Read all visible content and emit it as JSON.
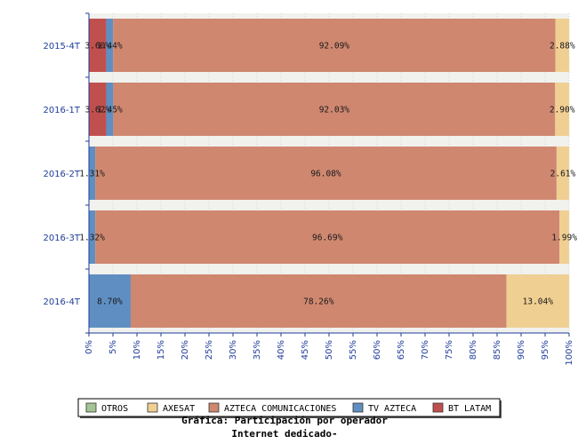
{
  "chart_data": {
    "type": "bar",
    "orientation": "horizontal",
    "stacked": true,
    "title": "Gráfica: Participación por operador",
    "subtitle": "Internet dedicado-",
    "categories": [
      "2015-4T",
      "2016-1T",
      "2016-2T",
      "2016-3T",
      "2016-4T"
    ],
    "xlim": [
      0,
      100
    ],
    "x_ticks": [
      "0%",
      "5%",
      "10%",
      "15%",
      "20%",
      "25%",
      "30%",
      "35%",
      "40%",
      "45%",
      "50%",
      "55%",
      "60%",
      "65%",
      "70%",
      "75%",
      "80%",
      "85%",
      "90%",
      "95%",
      "100%"
    ],
    "legend_position": "bottom",
    "grid": true,
    "series": [
      {
        "name": "BT LATAM",
        "color": "#c0504d",
        "values": [
          3.6,
          3.62,
          0,
          0,
          0
        ],
        "labels": [
          "3.60%",
          "3.62%",
          "",
          "",
          ""
        ]
      },
      {
        "name": "TV AZTECA",
        "color": "#5f8fc2",
        "values": [
          1.44,
          1.45,
          1.31,
          1.32,
          8.7
        ],
        "labels": [
          "1.44%",
          "1.45%",
          "1.31%",
          "1.32%",
          "8.70%"
        ]
      },
      {
        "name": "AZTECA COMUNICACIONES",
        "color": "#cf8770",
        "values": [
          92.09,
          92.03,
          96.08,
          96.69,
          78.26
        ],
        "labels": [
          "92.09%",
          "92.03%",
          "96.08%",
          "96.69%",
          "78.26%"
        ]
      },
      {
        "name": "AXESAT",
        "color": "#f0cf92",
        "values": [
          2.88,
          2.9,
          2.61,
          1.99,
          13.04
        ],
        "labels": [
          "2.88%",
          "2.90%",
          "2.61%",
          "1.99%",
          "13.04%"
        ]
      },
      {
        "name": "OTROS",
        "color": "#a5c495",
        "values": [
          0,
          0,
          0,
          0,
          0
        ],
        "labels": [
          "",
          "",
          "",
          "",
          ""
        ]
      }
    ],
    "legend_order": [
      "OTROS",
      "AXESAT",
      "AZTECA COMUNICACIONES",
      "TV AZTECA",
      "BT LATAM"
    ]
  }
}
